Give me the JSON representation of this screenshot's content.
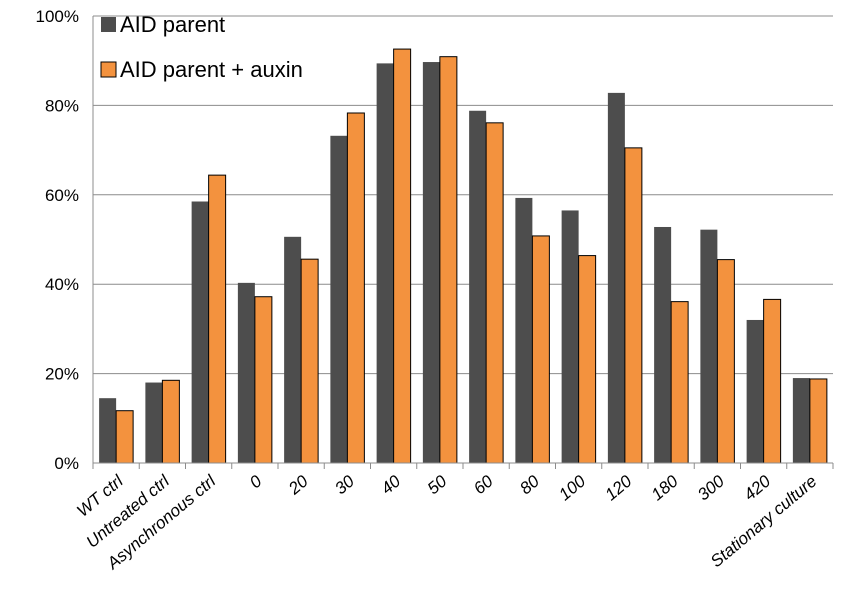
{
  "chart_data": {
    "type": "bar",
    "title": "",
    "xlabel": "",
    "ylabel": "",
    "ylim": [
      0,
      100
    ],
    "y_ticks": [
      0,
      20,
      40,
      60,
      80,
      100
    ],
    "y_tick_labels": [
      "0%",
      "20%",
      "40%",
      "60%",
      "80%",
      "100%"
    ],
    "grid": true,
    "legend_position": "top-left",
    "categories": [
      "WT ctrl",
      "Untreated ctrl",
      "Asynchronous ctrl",
      "0",
      "20",
      "30",
      "40",
      "50",
      "60",
      "80",
      "100",
      "120",
      "180",
      "300",
      "420",
      "Stationary culture"
    ],
    "series": [
      {
        "name": "AID parent",
        "color": "#4d4d4d",
        "values": [
          14.5,
          18,
          58.5,
          40.3,
          50.6,
          73.2,
          89.4,
          89.7,
          78.8,
          59.3,
          56.5,
          82.8,
          52.8,
          52.2,
          32,
          19
        ]
      },
      {
        "name": "AID parent + auxin",
        "color": "#f3923e",
        "values": [
          11.7,
          18.5,
          64.4,
          37.2,
          45.6,
          78.3,
          92.6,
          90.9,
          76.1,
          50.8,
          46.4,
          70.5,
          36.1,
          45.5,
          36.6,
          18.8
        ]
      }
    ]
  }
}
